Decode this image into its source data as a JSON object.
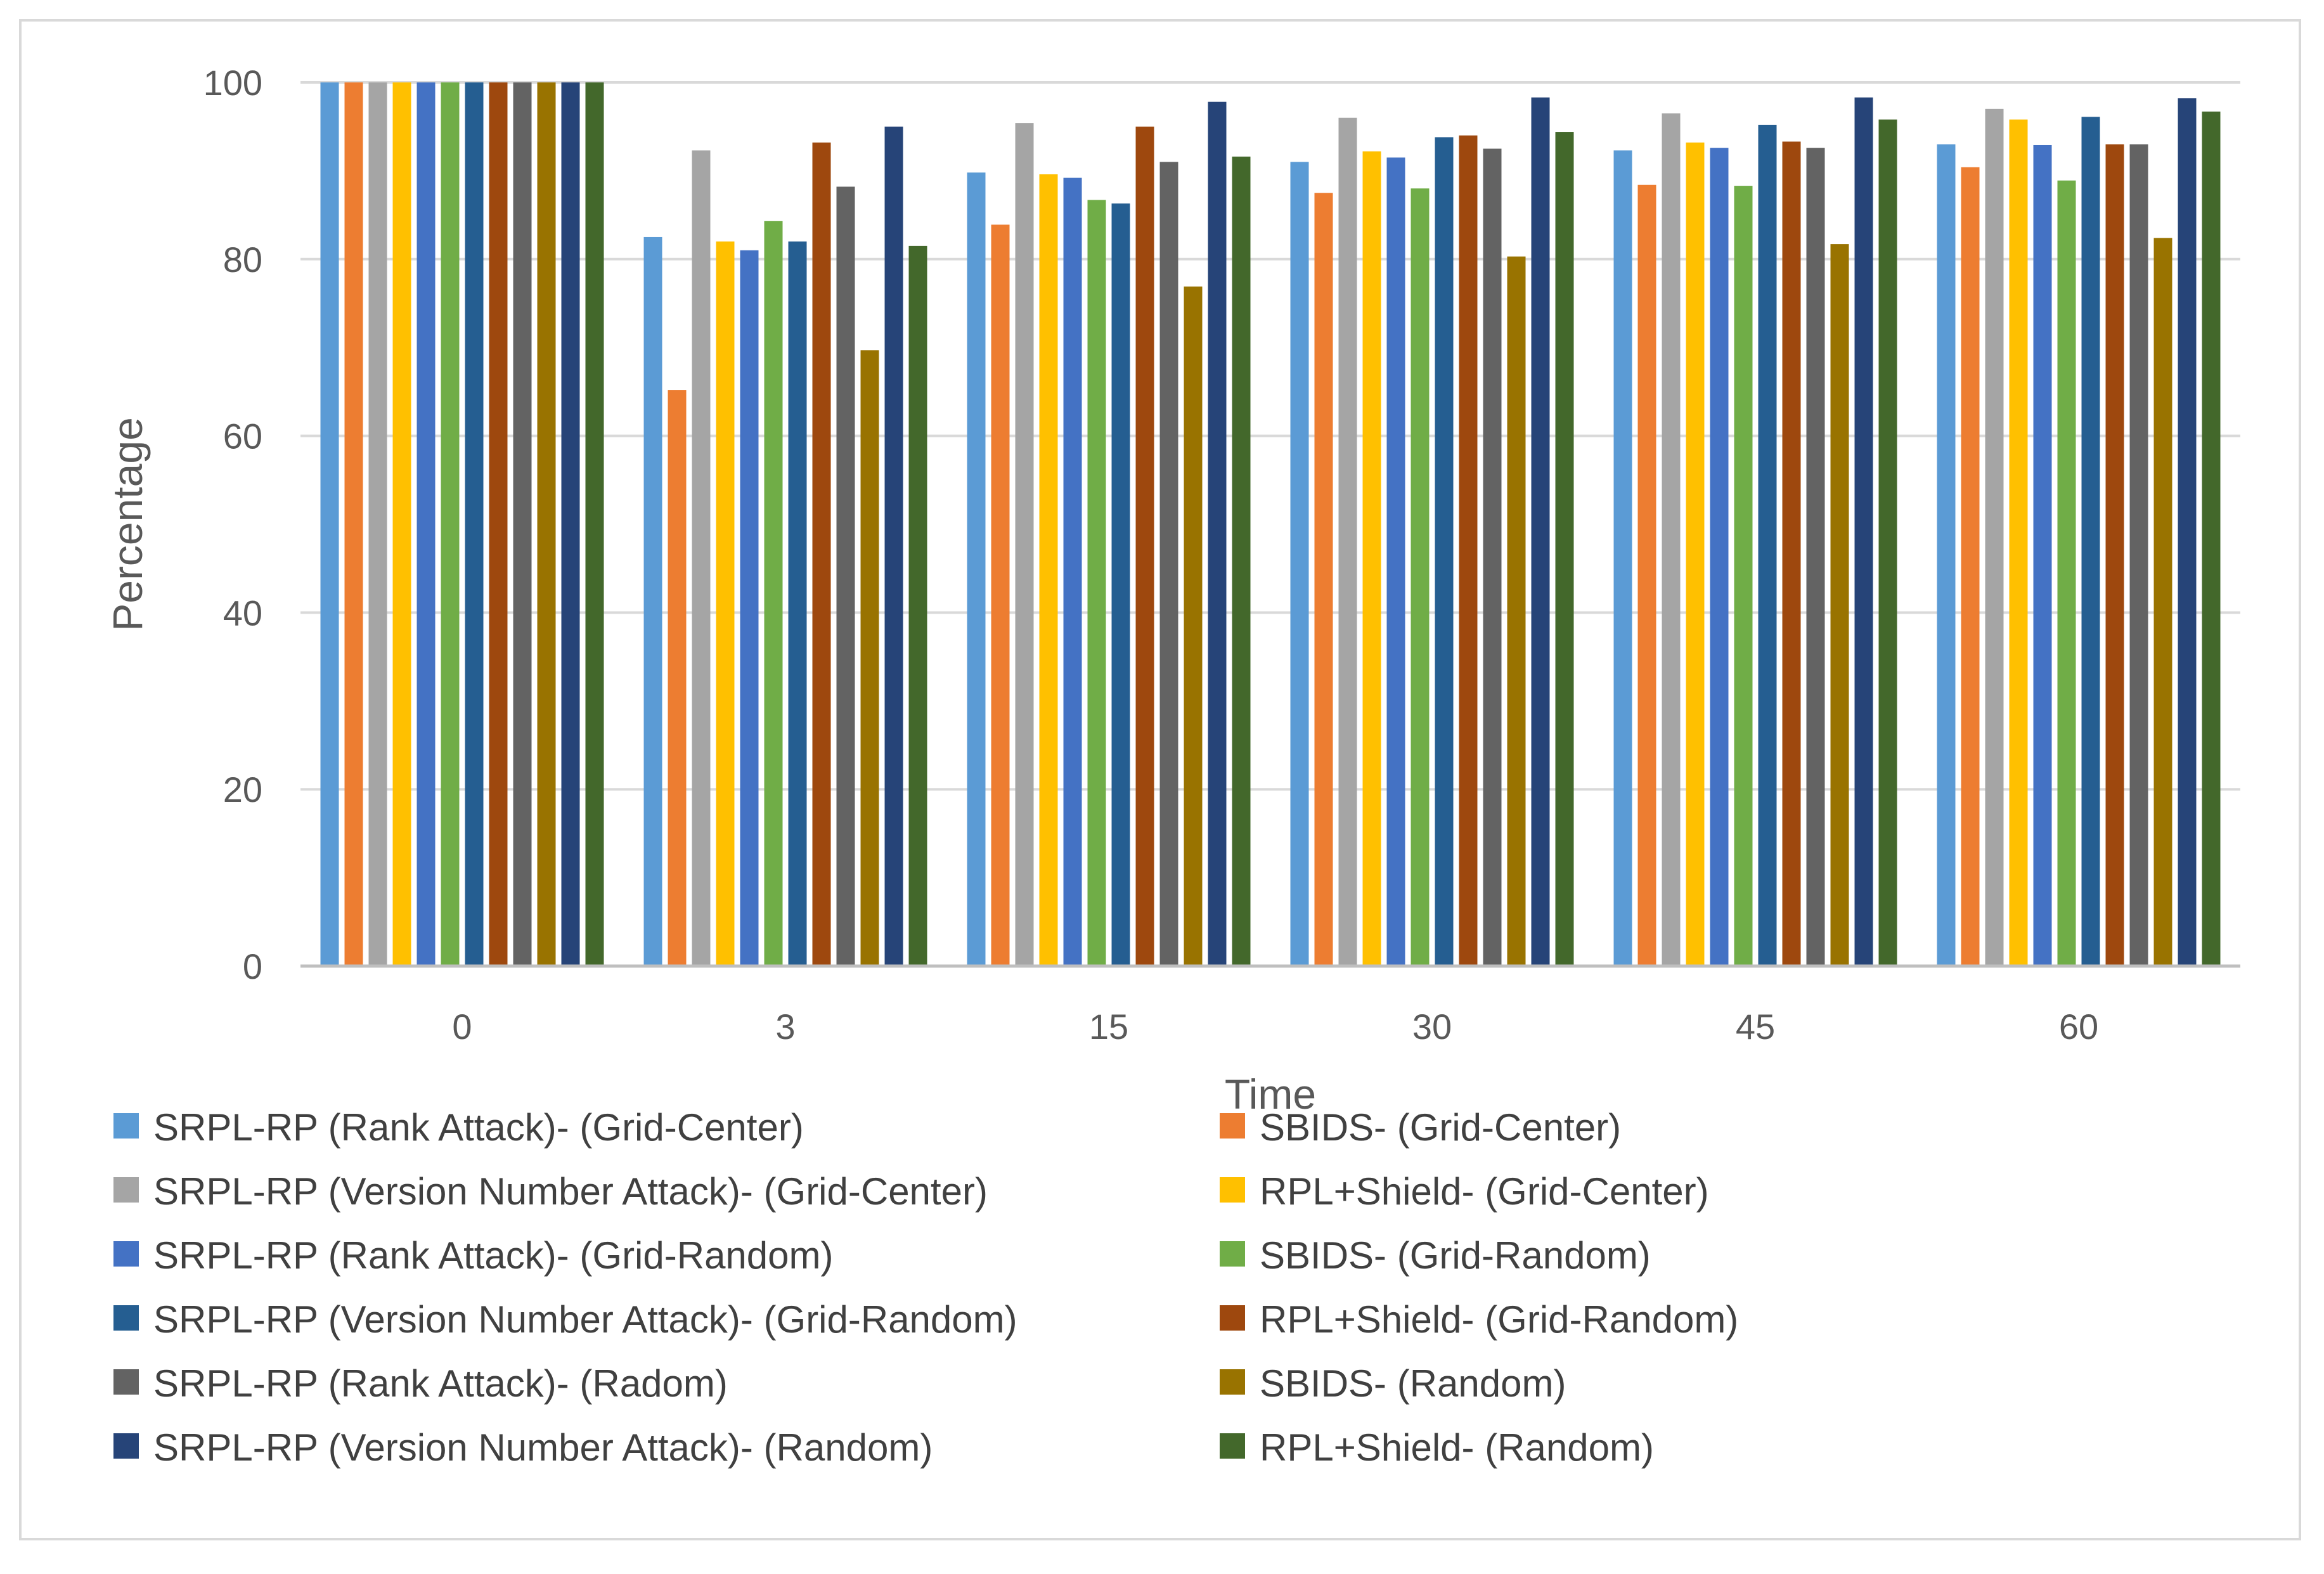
{
  "chart_data": {
    "type": "bar",
    "title": "",
    "xlabel": "Time",
    "ylabel": "Percentage",
    "ylim": [
      0,
      100
    ],
    "yticks": [
      0,
      20,
      40,
      60,
      80,
      100
    ],
    "grid": true,
    "legend_position": "bottom",
    "categories": [
      "0",
      "3",
      "15",
      "30",
      "45",
      "60"
    ],
    "series": [
      {
        "name": "SRPL-RP (Rank Attack)- (Grid-Center)",
        "color": "#5B9BD5",
        "values": [
          100,
          82.5,
          89.8,
          91,
          92.3,
          93
        ]
      },
      {
        "name": "SBIDS- (Grid-Center)",
        "color": "#ED7D31",
        "values": [
          100,
          65.2,
          83.9,
          87.5,
          88.4,
          90.4
        ]
      },
      {
        "name": "SRPL-RP (Version Number Attack)- (Grid-Center)",
        "color": "#A5A5A5",
        "values": [
          100,
          92.3,
          95.4,
          96,
          96.5,
          97
        ]
      },
      {
        "name": "RPL+Shield- (Grid-Center)",
        "color": "#FFC000",
        "values": [
          100,
          82,
          89.6,
          92.2,
          93.2,
          95.8
        ]
      },
      {
        "name": "SRPL-RP (Rank Attack)- (Grid-Random)",
        "color": "#4472C4",
        "values": [
          100,
          81,
          89.2,
          91.5,
          92.6,
          92.9
        ]
      },
      {
        "name": "SBIDS- (Grid-Random)",
        "color": "#70AD47",
        "values": [
          100,
          84.3,
          86.7,
          88,
          88.3,
          88.9
        ]
      },
      {
        "name": "SRPL-RP (Version Number Attack)- (Grid-Random)",
        "color": "#255E91",
        "values": [
          100,
          82,
          86.3,
          93.8,
          95.2,
          96.1
        ]
      },
      {
        "name": "RPL+Shield- (Grid-Random)",
        "color": "#9E480E",
        "values": [
          100,
          93.2,
          95,
          94,
          93.3,
          93
        ]
      },
      {
        "name": "SRPL-RP (Rank Attack)- (Radom)",
        "color": "#636363",
        "values": [
          100,
          88.2,
          91,
          92.5,
          92.6,
          93
        ]
      },
      {
        "name": "SBIDS- (Random)",
        "color": "#997300",
        "values": [
          100,
          69.7,
          76.9,
          80.3,
          81.7,
          82.4
        ]
      },
      {
        "name": "SRPL-RP (Version Number Attack)- (Random)",
        "color": "#264478",
        "values": [
          100,
          95,
          97.8,
          98.3,
          98.3,
          98.2
        ]
      },
      {
        "name": "RPL+Shield- (Random)",
        "color": "#43682B",
        "values": [
          100,
          81.5,
          91.6,
          94.4,
          95.8,
          96.7
        ]
      }
    ]
  }
}
